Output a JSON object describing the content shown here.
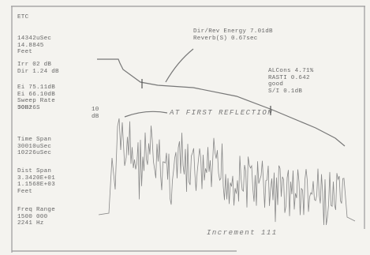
{
  "left_blocks": [
    [
      "ETC"
    ],
    [
      "14342uSec",
      "14.8845",
      "Feet"
    ],
    [
      "Irr 02 dB",
      "Dir 1.24 dB"
    ],
    [
      "Ei 75.11dB",
      "Ei 66.10dB",
      "Sweep Rate",
      "50Hz S"
    ],
    [
      "JOB26"
    ],
    [
      "Time Span",
      "30010uSec",
      "10226uSec"
    ],
    [
      "Dist Span",
      "3.3420E+01",
      "1.1568E+03",
      "Feet"
    ],
    [
      "Freq Range",
      "1500 000",
      "2241 Hz"
    ]
  ],
  "energy": [
    "Dir/Rev Energy 7.01dB",
    "Reverb(S) 0.67sec"
  ],
  "alcons": [
    "ALCons 4.71%",
    "RASTI 0.642",
    "good",
    "S/I 0.1dB"
  ],
  "scale": [
    "10",
    "dB"
  ],
  "annotation": "AT FIRST REFLECTION",
  "footer": "Increment 111"
}
